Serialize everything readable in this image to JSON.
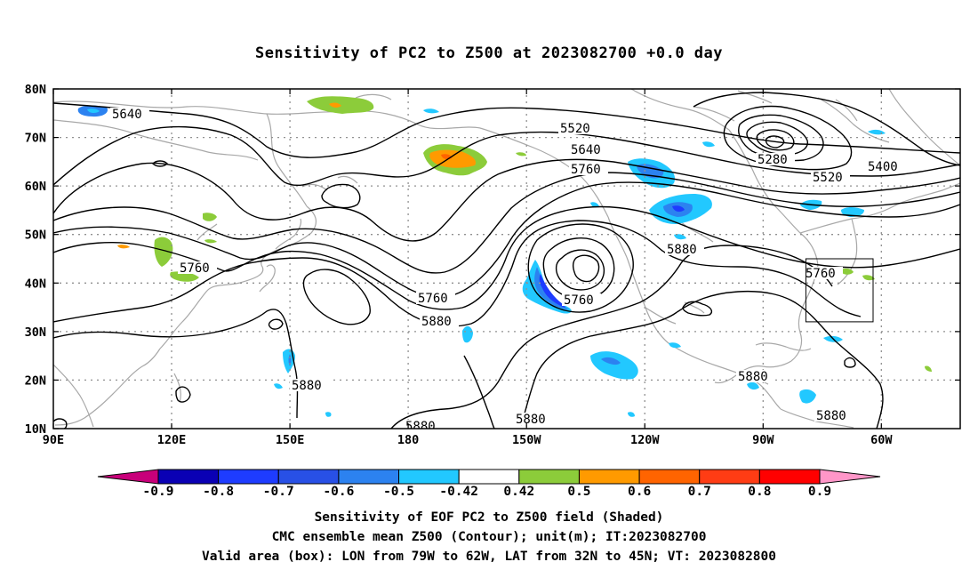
{
  "title": "Sensitivity of PC2 to Z500 at 2023082700 +0.0 day",
  "lat_labels": [
    "80N",
    "70N",
    "60N",
    "50N",
    "40N",
    "30N",
    "20N",
    "10N"
  ],
  "lon_labels": [
    "90E",
    "120E",
    "150E",
    "180",
    "150W",
    "120W",
    "90W",
    "60W"
  ],
  "contour_labels": [
    "5640",
    "5520",
    "5640",
    "5760",
    "5280",
    "5400",
    "5520",
    "5760",
    "5760",
    "5760",
    "5880",
    "5880",
    "5760",
    "5880",
    "5880",
    "5880",
    "5880",
    "5880"
  ],
  "colorbar": {
    "ticks": [
      "-0.9",
      "-0.8",
      "-0.7",
      "-0.6",
      "-0.5",
      "-0.42",
      "0.42",
      "0.5",
      "0.6",
      "0.7",
      "0.8",
      "0.9"
    ],
    "colors": [
      "#c8007a",
      "#0a00b4",
      "#1e3cff",
      "#2850e6",
      "#2c82f0",
      "#22c8ff",
      "#ffffff",
      "#8ccc3a",
      "#ff9a00",
      "#ff6400",
      "#ff3c14",
      "#ff0000",
      "#ff96c8"
    ]
  },
  "caption": {
    "line1": "Sensitivity of EOF PC2 to Z500 field (Shaded)",
    "line2": "CMC ensemble mean Z500 (Contour); unit(m); IT:2023082700",
    "line3": "Valid area (box): LON from 79W to 62W, LAT from 32N to 45N; VT: 2023082800"
  }
}
